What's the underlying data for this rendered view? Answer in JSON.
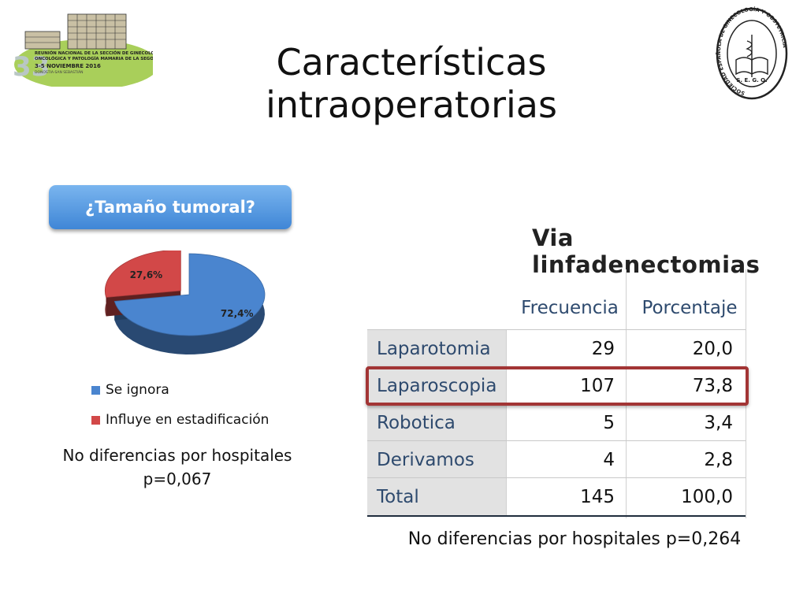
{
  "slide": {
    "title_line1": "Características",
    "title_line2": "intraoperatorias"
  },
  "logo_left": {
    "number": "33",
    "line1": "REUNIÓN NACIONAL DE LA SECCIÓN DE GINECOLOGÍA",
    "line2": "ONCOLÓGICA Y PATOLOGÍA MAMARIA DE LA SEGO",
    "dates": "3-5 NOVIEMBRE 2016",
    "place": "DONOSTIA-SAN SEBASTIÁN"
  },
  "logo_right": {
    "ring_text": "SOCIEDAD ESPAÑOLA DE GINECOLOGÍA Y OBSTETRICIA",
    "abbr": "S. E. G. O."
  },
  "left_panel": {
    "question": "¿Tamaño tumoral?",
    "note_line1": "No diferencias por hospitales",
    "note_line2": "p=0,067"
  },
  "right_panel": {
    "table_title": "Via linfadenectomias",
    "note": "No diferencias por hospitales p=0,264"
  },
  "colors": {
    "blue": "#4a85cf",
    "red": "#d24848",
    "highlight": "#a23535",
    "pill": "#4a8fd8"
  },
  "chart_data": [
    {
      "type": "pie",
      "title": "",
      "slices": [
        {
          "name": "Se ignora",
          "value": 72.4,
          "label": "72,4%",
          "color": "#4a85cf"
        },
        {
          "name": "Influye en estadificación",
          "value": 27.6,
          "label": "27,6%",
          "color": "#d24848"
        }
      ],
      "legend_position": "bottom",
      "exploded": true
    },
    {
      "type": "table",
      "title": "Via linfadenectomias",
      "columns": [
        "",
        "Frecuencia",
        "Porcentaje"
      ],
      "rows": [
        {
          "label": "Laparotomia",
          "freq": "29",
          "pct": "20,0"
        },
        {
          "label": "Laparoscopia",
          "freq": "107",
          "pct": "73,8"
        },
        {
          "label": "Robotica",
          "freq": "5",
          "pct": "3,4"
        },
        {
          "label": "Derivamos",
          "freq": "4",
          "pct": "2,8"
        },
        {
          "label": "Total",
          "freq": "145",
          "pct": "100,0"
        }
      ],
      "highlighted_row": "Laparoscopia"
    }
  ]
}
